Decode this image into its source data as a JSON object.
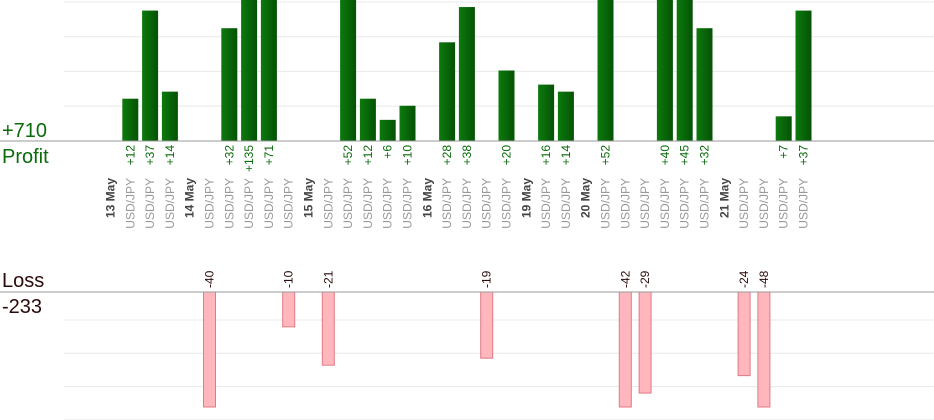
{
  "summary": {
    "profit_total": "+710",
    "profit_label": "Profit",
    "loss_label": "Loss",
    "loss_total": "-233"
  },
  "colors": {
    "profit_bar": "#0a6b0a",
    "profit_text": "#0a6b0a",
    "loss_bar": "#ffb6bc",
    "loss_bar_border": "#e07a84",
    "loss_text": "#2a0a0a",
    "grid": "#e8e8e8",
    "axis": "#999999"
  },
  "chart_data": {
    "type": "bar",
    "profit_scale_max": 40,
    "loss_scale_max": 33,
    "grid": true,
    "columns": [
      {
        "date": "13 May"
      },
      {
        "pair": "USD/JPY",
        "value": 12
      },
      {
        "pair": "USD/JPY",
        "value": 37
      },
      {
        "pair": "USD/JPY",
        "value": 14
      },
      {
        "date": "14 May"
      },
      {
        "pair": "USD/JPY",
        "value": -40
      },
      {
        "pair": "USD/JPY",
        "value": 32
      },
      {
        "pair": "USD/JPY",
        "value": 135
      },
      {
        "pair": "USD/JPY",
        "value": 71
      },
      {
        "pair": "USD/JPY",
        "value": -10
      },
      {
        "date": "15 May"
      },
      {
        "pair": "USD/JPY",
        "value": -21
      },
      {
        "pair": "USD/JPY",
        "value": 52
      },
      {
        "pair": "USD/JPY",
        "value": 12
      },
      {
        "pair": "USD/JPY",
        "value": 6
      },
      {
        "pair": "USD/JPY",
        "value": 10
      },
      {
        "date": "16 May"
      },
      {
        "pair": "USD/JPY",
        "value": 28
      },
      {
        "pair": "USD/JPY",
        "value": 38
      },
      {
        "pair": "USD/JPY",
        "value": -19
      },
      {
        "pair": "USD/JPY",
        "value": 20
      },
      {
        "date": "19 May"
      },
      {
        "pair": "USD/JPY",
        "value": 16
      },
      {
        "pair": "USD/JPY",
        "value": 14
      },
      {
        "date": "20 May"
      },
      {
        "pair": "USD/JPY",
        "value": 52
      },
      {
        "pair": "USD/JPY",
        "value": -42
      },
      {
        "pair": "USD/JPY",
        "value": -29
      },
      {
        "pair": "USD/JPY",
        "value": 40
      },
      {
        "pair": "USD/JPY",
        "value": 45
      },
      {
        "pair": "USD/JPY",
        "value": 32
      },
      {
        "date": "21 May"
      },
      {
        "pair": "USD/JPY",
        "value": -24
      },
      {
        "pair": "USD/JPY",
        "value": -48
      },
      {
        "pair": "USD/JPY",
        "value": 7
      },
      {
        "pair": "USD/JPY",
        "value": 37
      }
    ]
  }
}
